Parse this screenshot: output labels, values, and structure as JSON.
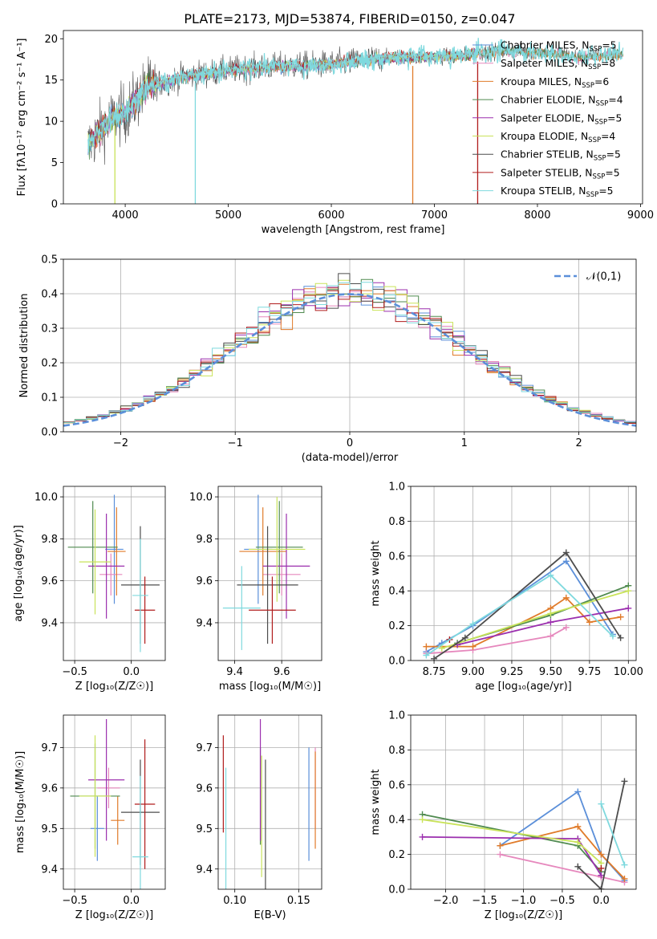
{
  "figure_title": "PLATE=2173, MJD=53874, FIBERID=0150, z=0.047",
  "colors": {
    "Chabrier MILES": "#5b8fd9",
    "Salpeter MILES": "#e688bd",
    "Kroupa MILES": "#e07b2a",
    "Chabrier ELODIE": "#4f8a4f",
    "Salpeter ELODIE": "#9b2fae",
    "Kroupa ELODIE": "#c9e35a",
    "Chabrier STELIB": "#4d4d4d",
    "Salpeter STELIB": "#b01c1c",
    "Kroupa STELIB": "#7fd9de"
  },
  "chart_data": [
    {
      "id": "spectrum",
      "type": "line",
      "xlabel": "wavelength [Angstrom, rest frame]",
      "ylabel": "Flux [fλ10⁻¹⁷ erg cm⁻² s⁻¹ A⁻¹]",
      "xlim": [
        3400,
        9020
      ],
      "ylim": [
        0,
        21
      ],
      "xticks": [
        4000,
        5000,
        6000,
        7000,
        8000,
        9000
      ],
      "yticks": [
        0,
        5,
        10,
        15,
        20
      ],
      "data_range": [
        3640,
        8830
      ],
      "model_range": [
        3640,
        7420
      ],
      "continuum": {
        "x": [
          3640,
          3700,
          3800,
          3900,
          4000,
          4100,
          4200,
          4300,
          4400,
          4600,
          4800,
          5000,
          5200,
          5400,
          5600,
          5800,
          6000,
          6200,
          6400,
          6600,
          6800,
          7000,
          7200,
          7400,
          7600,
          7800,
          8000,
          8200,
          8400,
          8600,
          8830
        ],
        "y": [
          7.0,
          8.0,
          9.5,
          10.5,
          11.0,
          12.5,
          14.0,
          14.5,
          14.8,
          15.5,
          15.8,
          16.2,
          16.4,
          16.6,
          16.7,
          16.8,
          16.9,
          17.2,
          17.5,
          17.8,
          17.7,
          17.9,
          17.8,
          18.2,
          18.5,
          18.5,
          18.4,
          18.2,
          17.8,
          18.0,
          18.2
        ]
      },
      "spikes": [
        3900,
        4680,
        6790,
        7420
      ],
      "legend": [
        {
          "label": "Chabrier MILES, N",
          "sub": "SSP",
          "eq": "=5"
        },
        {
          "label": "Salpeter MILES, N",
          "sub": "SSP",
          "eq": "=8"
        },
        {
          "label": "Kroupa MILES, N",
          "sub": "SSP",
          "eq": "=6"
        },
        {
          "label": "Chabrier ELODIE, N",
          "sub": "SSP",
          "eq": "=4"
        },
        {
          "label": "Salpeter ELODIE, N",
          "sub": "SSP",
          "eq": "=5"
        },
        {
          "label": "Kroupa ELODIE, N",
          "sub": "SSP",
          "eq": "=4"
        },
        {
          "label": "Chabrier STELIB, N",
          "sub": "SSP",
          "eq": "=5"
        },
        {
          "label": "Salpeter STELIB, N",
          "sub": "SSP",
          "eq": "=5"
        },
        {
          "label": "Kroupa STELIB, N",
          "sub": "SSP",
          "eq": "=5"
        }
      ],
      "legend_placement": "right"
    },
    {
      "id": "residuals",
      "type": "histogram",
      "xlabel": "(data-model)/error",
      "ylabel": "Normed distribution",
      "xlim": [
        -2.5,
        2.5
      ],
      "ylim": [
        0,
        0.5
      ],
      "xticks": [
        -2,
        -1,
        0,
        1,
        2
      ],
      "yticks": [
        0.0,
        0.1,
        0.2,
        0.3,
        0.4,
        0.5
      ],
      "grid": true,
      "bin_width": 0.1,
      "reference": {
        "label": "𝒩(0,1)",
        "style": "dashed",
        "color": "#5b8fd9"
      },
      "legend_placement": "top-right"
    },
    {
      "id": "age_vs_Z",
      "type": "errorbar",
      "xlabel": "Z [log₁₀(Z/Z☉)]",
      "ylabel": "age  [log₁₀(age/yr)]",
      "xlim": [
        -0.6,
        0.3
      ],
      "ylim": [
        9.22,
        10.05
      ],
      "xticks": [
        -0.5,
        0.0
      ],
      "yticks": [
        9.4,
        9.6,
        9.8,
        10.0
      ],
      "grid": true,
      "points": [
        {
          "model": "Chabrier MILES",
          "x": -0.15,
          "xerr": 0.08,
          "y": 9.75,
          "yerr": 0.26
        },
        {
          "model": "Salpeter MILES",
          "x": -0.18,
          "xerr": 0.1,
          "y": 9.63,
          "yerr": 0.1
        },
        {
          "model": "Kroupa MILES",
          "x": -0.13,
          "xerr": 0.08,
          "y": 9.74,
          "yerr": 0.21
        },
        {
          "model": "Chabrier ELODIE",
          "x": -0.34,
          "xerr": 0.22,
          "y": 9.76,
          "yerr": 0.22
        },
        {
          "model": "Salpeter ELODIE",
          "x": -0.22,
          "xerr": 0.16,
          "y": 9.67,
          "yerr": 0.25
        },
        {
          "model": "Kroupa ELODIE",
          "x": -0.32,
          "xerr": 0.14,
          "y": 9.69,
          "yerr": 0.25
        },
        {
          "model": "Chabrier STELIB",
          "x": 0.08,
          "xerr": 0.17,
          "y": 9.58,
          "yerr": 0.28
        },
        {
          "model": "Salpeter STELIB",
          "x": 0.12,
          "xerr": 0.09,
          "y": 9.46,
          "yerr": 0.16
        },
        {
          "model": "Kroupa STELIB",
          "x": 0.08,
          "xerr": 0.07,
          "y": 9.53,
          "yerr": 0.27
        }
      ]
    },
    {
      "id": "age_vs_mass",
      "type": "errorbar",
      "xlabel": "mass [log₁₀(M/M☉)]",
      "ylabel": "",
      "xlim": [
        9.33,
        9.77
      ],
      "ylim": [
        9.22,
        10.05
      ],
      "xticks": [
        9.4,
        9.6
      ],
      "yticks": [
        9.4,
        9.6,
        9.8,
        10.0
      ],
      "grid": true,
      "points": [
        {
          "model": "Chabrier MILES",
          "x": 9.5,
          "xerr": 0.06,
          "y": 9.75,
          "yerr": 0.26
        },
        {
          "model": "Salpeter MILES",
          "x": 9.6,
          "xerr": 0.08,
          "y": 9.63,
          "yerr": 0.1
        },
        {
          "model": "Kroupa MILES",
          "x": 9.52,
          "xerr": 0.1,
          "y": 9.74,
          "yerr": 0.21
        },
        {
          "model": "Chabrier ELODIE",
          "x": 9.59,
          "xerr": 0.1,
          "y": 9.76,
          "yerr": 0.22
        },
        {
          "model": "Salpeter ELODIE",
          "x": 9.62,
          "xerr": 0.1,
          "y": 9.67,
          "yerr": 0.25
        },
        {
          "model": "Kroupa ELODIE",
          "x": 9.58,
          "xerr": 0.12,
          "y": 9.75,
          "yerr": 0.25
        },
        {
          "model": "Chabrier STELIB",
          "x": 9.54,
          "xerr": 0.13,
          "y": 9.58,
          "yerr": 0.28
        },
        {
          "model": "Salpeter STELIB",
          "x": 9.56,
          "xerr": 0.1,
          "y": 9.46,
          "yerr": 0.16
        },
        {
          "model": "Kroupa STELIB",
          "x": 9.43,
          "xerr": 0.08,
          "y": 9.47,
          "yerr": 0.2
        }
      ]
    },
    {
      "id": "weight_vs_age",
      "type": "line",
      "xlabel": "age  [log₁₀(age/yr)]",
      "ylabel": "mass weight",
      "xlim": [
        8.6,
        10.05
      ],
      "ylim": [
        0,
        1.0
      ],
      "xticks": [
        8.75,
        9.0,
        9.25,
        9.5,
        9.75,
        10.0
      ],
      "yticks": [
        0.0,
        0.2,
        0.4,
        0.6,
        0.8,
        1.0
      ],
      "grid": true,
      "series": [
        {
          "model": "Chabrier MILES",
          "x": [
            8.7,
            8.8,
            9.0,
            9.6,
            9.9
          ],
          "y": [
            0.05,
            0.1,
            0.2,
            0.57,
            0.15
          ]
        },
        {
          "model": "Salpeter MILES",
          "x": [
            8.7,
            9.0,
            9.5,
            9.6
          ],
          "y": [
            0.04,
            0.06,
            0.14,
            0.19
          ]
        },
        {
          "model": "Kroupa MILES",
          "x": [
            8.7,
            9.0,
            9.5,
            9.6,
            9.75,
            9.95
          ],
          "y": [
            0.08,
            0.08,
            0.3,
            0.36,
            0.22,
            0.25
          ]
        },
        {
          "model": "Chabrier ELODIE",
          "x": [
            8.9,
            9.5,
            10.0
          ],
          "y": [
            0.1,
            0.26,
            0.43
          ]
        },
        {
          "model": "Salpeter ELODIE",
          "x": [
            8.9,
            9.5,
            10.0
          ],
          "y": [
            0.09,
            0.22,
            0.3
          ]
        },
        {
          "model": "Kroupa ELODIE",
          "x": [
            8.8,
            9.5,
            10.0
          ],
          "y": [
            0.07,
            0.27,
            0.4
          ]
        },
        {
          "model": "Chabrier STELIB",
          "x": [
            8.75,
            8.95,
            9.6,
            9.95
          ],
          "y": [
            0.01,
            0.13,
            0.62,
            0.13
          ]
        },
        {
          "model": "Salpeter STELIB",
          "x": [
            8.85
          ],
          "y": [
            0.12
          ]
        },
        {
          "model": "Kroupa STELIB",
          "x": [
            8.7,
            9.0,
            9.5,
            9.9
          ],
          "y": [
            0.03,
            0.21,
            0.49,
            0.14
          ]
        }
      ]
    },
    {
      "id": "mass_vs_Z",
      "type": "errorbar",
      "xlabel": "Z [log₁₀(Z/Z☉)]",
      "ylabel": "mass [log₁₀(M/M☉)]",
      "xlim": [
        -0.6,
        0.3
      ],
      "ylim": [
        9.35,
        9.78
      ],
      "xticks": [
        -0.5,
        0.0
      ],
      "yticks": [
        9.4,
        9.5,
        9.6,
        9.7
      ],
      "grid": true,
      "points": [
        {
          "model": "Chabrier MILES",
          "x": -0.3,
          "xerr": 0.06,
          "y": 9.5,
          "yerr": 0.08
        },
        {
          "model": "Salpeter MILES",
          "x": -0.2,
          "xerr": 0.1,
          "y": 9.6,
          "yerr": 0.05
        },
        {
          "model": "Kroupa MILES",
          "x": -0.12,
          "xerr": 0.06,
          "y": 9.52,
          "yerr": 0.06
        },
        {
          "model": "Chabrier ELODIE",
          "x": -0.32,
          "xerr": 0.22,
          "y": 9.58,
          "yerr": 0.13
        },
        {
          "model": "Salpeter ELODIE",
          "x": -0.22,
          "xerr": 0.16,
          "y": 9.62,
          "yerr": 0.15
        },
        {
          "model": "Kroupa ELODIE",
          "x": -0.32,
          "xerr": 0.14,
          "y": 9.58,
          "yerr": 0.15
        },
        {
          "model": "Chabrier STELIB",
          "x": 0.08,
          "xerr": 0.17,
          "y": 9.54,
          "yerr": 0.13
        },
        {
          "model": "Salpeter STELIB",
          "x": 0.12,
          "xerr": 0.09,
          "y": 9.56,
          "yerr": 0.16
        },
        {
          "model": "Kroupa STELIB",
          "x": 0.08,
          "xerr": 0.07,
          "y": 9.43,
          "yerr": 0.2
        }
      ]
    },
    {
      "id": "mass_vs_ebv",
      "type": "errorbar",
      "xlabel": "E(B-V)",
      "ylabel": "",
      "xlim": [
        0.087,
        0.168
      ],
      "ylim": [
        9.35,
        9.78
      ],
      "xticks": [
        0.1,
        0.15
      ],
      "yticks": [
        9.4,
        9.5,
        9.6,
        9.7
      ],
      "grid": true,
      "points": [
        {
          "model": "Chabrier MILES",
          "x": 0.158,
          "y": 9.56,
          "yerr": 0.14
        },
        {
          "model": "Salpeter MILES",
          "x": 0.163,
          "y": 9.6,
          "yerr": 0.1
        },
        {
          "model": "Kroupa MILES",
          "x": 0.163,
          "y": 9.57,
          "yerr": 0.12
        },
        {
          "model": "Chabrier ELODIE",
          "x": 0.12,
          "y": 9.58,
          "yerr": 0.12
        },
        {
          "model": "Salpeter ELODIE",
          "x": 0.12,
          "y": 9.62,
          "yerr": 0.15
        },
        {
          "model": "Kroupa ELODIE",
          "x": 0.121,
          "y": 9.53,
          "yerr": 0.15
        },
        {
          "model": "Chabrier STELIB",
          "x": 0.124,
          "y": 9.5,
          "yerr": 0.17
        },
        {
          "model": "Salpeter STELIB",
          "x": 0.091,
          "y": 9.61,
          "yerr": 0.12
        },
        {
          "model": "Kroupa STELIB",
          "x": 0.093,
          "y": 9.5,
          "yerr": 0.15
        }
      ]
    },
    {
      "id": "weight_vs_Z",
      "type": "line",
      "xlabel": "Z [log₁₀(Z/Z☉)]",
      "ylabel": "mass weight",
      "xlim": [
        -2.45,
        0.45
      ],
      "ylim": [
        0,
        1.0
      ],
      "xticks": [
        -2.0,
        -1.5,
        -1.0,
        -0.5,
        0.0
      ],
      "yticks": [
        0.0,
        0.2,
        0.4,
        0.6,
        0.8,
        1.0
      ],
      "grid": true,
      "series": [
        {
          "model": "Chabrier MILES",
          "x": [
            -1.3,
            -0.3,
            0.0,
            0.3
          ],
          "y": [
            0.25,
            0.56,
            0.2,
            0.05
          ]
        },
        {
          "model": "Salpeter MILES",
          "x": [
            -1.3,
            0.0,
            0.3
          ],
          "y": [
            0.2,
            0.07,
            0.04
          ]
        },
        {
          "model": "Kroupa MILES",
          "x": [
            -1.3,
            -0.3,
            0.0,
            0.3
          ],
          "y": [
            0.25,
            0.36,
            0.2,
            0.06
          ]
        },
        {
          "model": "Chabrier ELODIE",
          "x": [
            -2.3,
            -0.3,
            0.0
          ],
          "y": [
            0.43,
            0.25,
            0.1
          ]
        },
        {
          "model": "Salpeter ELODIE",
          "x": [
            -2.3,
            -0.3,
            0.0
          ],
          "y": [
            0.3,
            0.29,
            0.08
          ]
        },
        {
          "model": "Kroupa ELODIE",
          "x": [
            -2.3,
            -0.3,
            0.0
          ],
          "y": [
            0.4,
            0.27,
            0.15
          ]
        },
        {
          "model": "Chabrier STELIB",
          "x": [
            -0.3,
            0.0,
            0.3
          ],
          "y": [
            0.13,
            0.0,
            0.62
          ]
        },
        {
          "model": "Salpeter STELIB",
          "x": [
            0.0
          ],
          "y": [
            0.12
          ]
        },
        {
          "model": "Kroupa STELIB",
          "x": [
            0.0,
            0.3
          ],
          "y": [
            0.49,
            0.14
          ]
        }
      ]
    }
  ]
}
